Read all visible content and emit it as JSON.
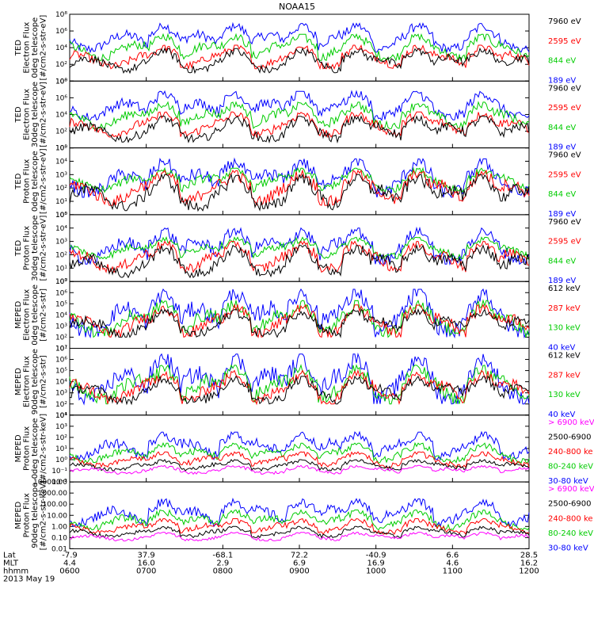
{
  "page_title": "NOAA15",
  "colors": {
    "blue": "#0000ff",
    "red": "#ff0000",
    "green": "#00cc00",
    "black": "#000000",
    "magenta": "#ff00ff"
  },
  "chart_data": [
    {
      "type": "line",
      "ylabel": [
        "TED",
        "Electron Flux",
        "0deg telescope",
        "[#/cm2-s-str-eV]"
      ],
      "log_scale": true,
      "y_tick_labels": [
        "10⁰",
        "10²",
        "10⁴",
        "10⁶",
        "10⁸"
      ],
      "ylim": [
        1,
        100000000
      ],
      "series": [
        {
          "name": "7960 eV",
          "color": "#000000",
          "level": [
            10,
            8000
          ]
        },
        {
          "name": "2595 eV",
          "color": "#ff0000",
          "level": [
            30,
            20000
          ]
        },
        {
          "name": "844 eV",
          "color": "#00cc00",
          "level": [
            300,
            400000
          ]
        },
        {
          "name": "189 eV",
          "color": "#0000ff",
          "level": [
            3000,
            8000000
          ]
        }
      ]
    },
    {
      "type": "line",
      "ylabel": [
        "TED",
        "Electron Flux",
        "30deg telescope",
        "[#/cm2-s-str-eV]"
      ],
      "log_scale": true,
      "y_tick_labels": [
        "10⁰",
        "10²",
        "10⁴",
        "10⁶",
        "10⁸"
      ],
      "ylim": [
        1,
        100000000
      ],
      "series": [
        {
          "name": "7960 eV",
          "color": "#000000",
          "level": [
            5,
            6000
          ]
        },
        {
          "name": "2595 eV",
          "color": "#ff0000",
          "level": [
            20,
            20000
          ]
        },
        {
          "name": "844 eV",
          "color": "#00cc00",
          "level": [
            200,
            300000
          ]
        },
        {
          "name": "189 eV",
          "color": "#0000ff",
          "level": [
            2000,
            6000000
          ]
        }
      ]
    },
    {
      "type": "line",
      "ylabel": [
        "TED",
        "Proton Flux",
        "0deg telescope",
        "[#/cm2-s-str-eV]"
      ],
      "log_scale": true,
      "y_tick_labels": [
        "10⁰",
        "10¹",
        "10²",
        "10³",
        "10⁴",
        "10⁵"
      ],
      "ylim": [
        1,
        100000
      ],
      "series": [
        {
          "name": "7960 eV",
          "color": "#000000",
          "level": [
            2,
            1000
          ]
        },
        {
          "name": "2595 eV",
          "color": "#ff0000",
          "level": [
            5,
            2000
          ]
        },
        {
          "name": "844 eV",
          "color": "#00cc00",
          "level": [
            50,
            3000
          ]
        },
        {
          "name": "189 eV",
          "color": "#0000ff",
          "level": [
            20,
            15000
          ]
        }
      ]
    },
    {
      "type": "line",
      "ylabel": [
        "TED",
        "Proton Flux",
        "30deg telescope",
        "[#/cm2-s-str-eV]"
      ],
      "log_scale": true,
      "y_tick_labels": [
        "10⁰",
        "10¹",
        "10²",
        "10³",
        "10⁴",
        "10⁵"
      ],
      "ylim": [
        1,
        100000
      ],
      "series": [
        {
          "name": "7960 eV",
          "color": "#000000",
          "level": [
            2,
            500
          ]
        },
        {
          "name": "2595 eV",
          "color": "#ff0000",
          "level": [
            5,
            1000
          ]
        },
        {
          "name": "844 eV",
          "color": "#00cc00",
          "level": [
            50,
            2000
          ]
        },
        {
          "name": "189 eV",
          "color": "#0000ff",
          "level": [
            20,
            10000
          ]
        }
      ]
    },
    {
      "type": "line",
      "ylabel": [
        "MEPED",
        "Electron Flux",
        "0deg telescope",
        "[#/cm2-s-str]"
      ],
      "log_scale": true,
      "y_tick_labels": [
        "10¹",
        "10²",
        "10³",
        "10⁴",
        "10⁵",
        "10⁶",
        "10⁷"
      ],
      "ylim": [
        10,
        10000000
      ],
      "series": [
        {
          "name": "612 keV",
          "color": "#000000",
          "level": [
            100,
            30000
          ]
        },
        {
          "name": "287 keV",
          "color": "#ff0000",
          "level": [
            100,
            80000
          ]
        },
        {
          "name": "130 keV",
          "color": "#00cc00",
          "level": [
            100,
            200000
          ]
        },
        {
          "name": "40 keV",
          "color": "#0000ff",
          "level": [
            100,
            2000000
          ]
        }
      ]
    },
    {
      "type": "line",
      "ylabel": [
        "MEPED",
        "Electron Flux",
        "90deg telescope",
        "[#/cm2-s-str]"
      ],
      "log_scale": true,
      "y_tick_labels": [
        "10¹",
        "10²",
        "10³",
        "10⁴",
        "10⁵",
        "10⁶",
        "10⁷"
      ],
      "ylim": [
        10,
        10000000
      ],
      "series": [
        {
          "name": "612 keV",
          "color": "#000000",
          "level": [
            100,
            30000
          ]
        },
        {
          "name": "287 keV",
          "color": "#ff0000",
          "level": [
            100,
            100000
          ]
        },
        {
          "name": "130 keV",
          "color": "#00cc00",
          "level": [
            100,
            300000
          ]
        },
        {
          "name": "40 keV",
          "color": "#0000ff",
          "level": [
            100,
            3000000
          ]
        }
      ]
    },
    {
      "type": "line",
      "ylabel": [
        "MEPED",
        "Proton Flux",
        "0deg telescope",
        "[#/cm2-s-str-keV]"
      ],
      "log_scale": true,
      "y_tick_labels": [
        "10⁻²",
        "10⁻¹",
        "10⁰",
        "10¹",
        "10²",
        "10³",
        "10⁴"
      ],
      "ylim": [
        0.01,
        10000
      ],
      "series": [
        {
          "name": "> 6900 keV",
          "color": "#ff00ff",
          "level": [
            0.05,
            0.3
          ]
        },
        {
          "name": "2500-6900",
          "color": "#000000",
          "level": [
            0.1,
            1
          ]
        },
        {
          "name": "240-800 ke",
          "color": "#ff0000",
          "level": [
            0.2,
            5
          ]
        },
        {
          "name": "80-240 keV",
          "color": "#00cc00",
          "level": [
            0.5,
            30
          ]
        },
        {
          "name": "30-80 keV",
          "color": "#0000ff",
          "level": [
            1,
            300
          ]
        }
      ]
    },
    {
      "type": "line",
      "ylabel": [
        "MEPED",
        "Proton Flux",
        "90deg telescope",
        "[#/cm2-s-str-keV]"
      ],
      "log_scale": true,
      "y_tick_labels": [
        "0.01",
        "0.10",
        "1.00",
        "10.00",
        "100.00",
        "1000.00",
        "10000.00"
      ],
      "ylim": [
        0.01,
        10000
      ],
      "series": [
        {
          "name": "> 6900 keV",
          "color": "#ff00ff",
          "level": [
            0.05,
            0.3
          ]
        },
        {
          "name": "2500-6900",
          "color": "#000000",
          "level": [
            0.1,
            1
          ]
        },
        {
          "name": "240-800 ke",
          "color": "#ff0000",
          "level": [
            0.2,
            5
          ]
        },
        {
          "name": "80-240 keV",
          "color": "#00cc00",
          "level": [
            0.5,
            30
          ]
        },
        {
          "name": "30-80 keV",
          "color": "#0000ff",
          "level": [
            1,
            300
          ]
        }
      ]
    }
  ],
  "x_axis": {
    "row_labels": [
      "Lat",
      "MLT",
      "hhmm"
    ],
    "columns": [
      {
        "lat": "-7.9",
        "mlt": "4.4",
        "hhmm": "0600"
      },
      {
        "lat": "37.9",
        "mlt": "16.0",
        "hhmm": "0700"
      },
      {
        "lat": "-68.1",
        "mlt": "2.9",
        "hhmm": "0800"
      },
      {
        "lat": "72.2",
        "mlt": "6.9",
        "hhmm": "0900"
      },
      {
        "lat": "-40.9",
        "mlt": "16.9",
        "hhmm": "1000"
      },
      {
        "lat": "6.6",
        "mlt": "4.6",
        "hhmm": "1100"
      },
      {
        "lat": "28.5",
        "mlt": "16.2",
        "hhmm": "1200"
      }
    ],
    "date": "2013 May 19"
  },
  "passes": [
    0.205,
    0.36,
    0.505,
    0.625,
    0.758,
    0.9
  ]
}
